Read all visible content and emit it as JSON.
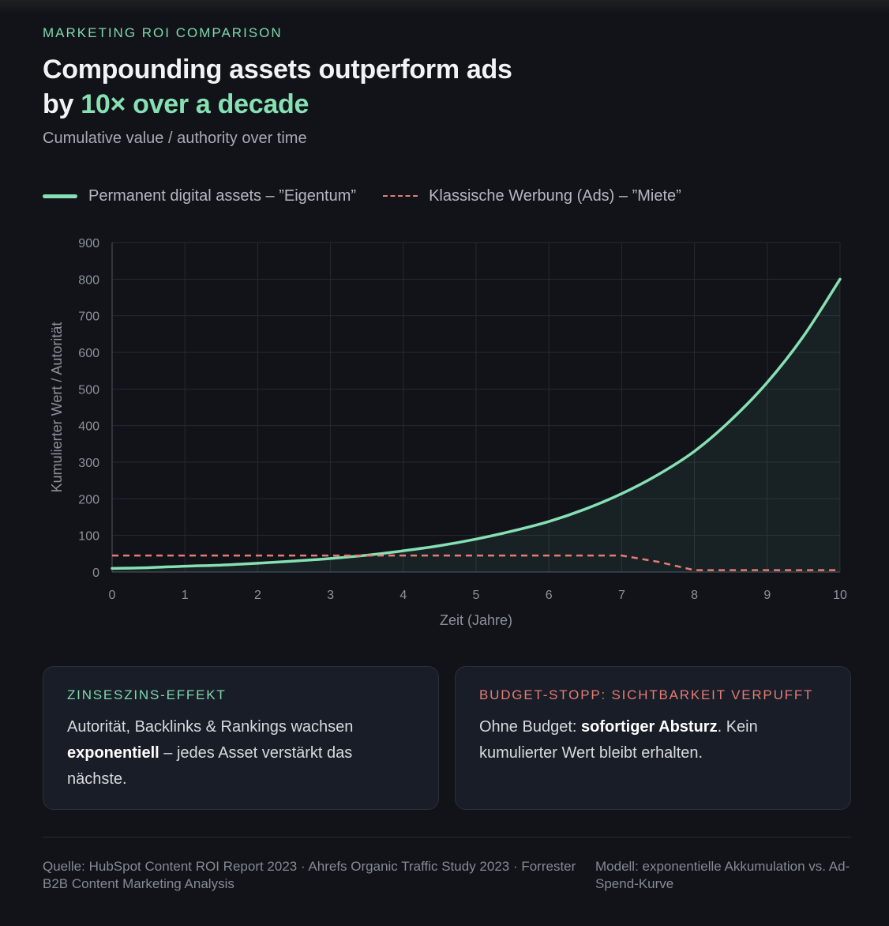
{
  "header": {
    "eyebrow": "MARKETING ROI COMPARISON",
    "title_line1": "Compounding assets outperform ads",
    "title_line2_prefix": "by ",
    "title_line2_accent": "10× over a decade",
    "subtitle": "Cumulative value / authority over time"
  },
  "legend": {
    "assets_label": "Permanent digital assets – ”Eigentum”",
    "ads_label": "Klassische Werbung (Ads) – ”Miete”"
  },
  "colors": {
    "assets": "#86e0b4",
    "ads": "#e57c74",
    "grid": "#262a31",
    "tick_text": "#8d929a"
  },
  "chart_data": {
    "type": "line",
    "xlabel": "Zeit (Jahre)",
    "ylabel": "Kumulierter Wert / Autorität",
    "xlim": [
      0,
      10
    ],
    "ylim": [
      0,
      900
    ],
    "x_ticks": [
      0,
      1,
      2,
      3,
      4,
      5,
      6,
      7,
      8,
      9,
      10
    ],
    "y_ticks": [
      0,
      100,
      200,
      300,
      400,
      500,
      600,
      700,
      800,
      900
    ],
    "grid": true,
    "legend_position": "top-left",
    "series": [
      {
        "name": "Permanent digital assets – ”Eigentum”",
        "style": "solid",
        "area_fill": true,
        "x": [
          0,
          0.5,
          1,
          1.5,
          2,
          2.5,
          3,
          3.5,
          4,
          4.5,
          5,
          5.5,
          6,
          6.5,
          7,
          7.5,
          8,
          8.5,
          9,
          9.5,
          10
        ],
        "y": [
          10,
          12,
          16,
          19,
          24,
          30,
          37,
          46,
          58,
          72,
          90,
          112,
          138,
          172,
          214,
          266,
          330,
          415,
          518,
          645,
          800
        ]
      },
      {
        "name": "Klassische Werbung (Ads) – ”Miete”",
        "style": "dashed",
        "x": [
          0,
          7,
          7.5,
          8,
          9,
          10
        ],
        "y": [
          45,
          45,
          28,
          5,
          5,
          5
        ]
      }
    ]
  },
  "cards": [
    {
      "label": "ZINSESZINS-EFFEKT",
      "text_before": "Autorität, Backlinks & Rankings wachsen ",
      "text_bold": "exponentiell",
      "text_after": " – jedes Asset verstärkt das nächste."
    },
    {
      "label": "BUDGET-STOPP: SICHTBARKEIT VERPUFFT",
      "text_before": "Ohne Budget: ",
      "text_bold": "sofortiger Absturz",
      "text_after": ". Kein kumulierter Wert bleibt erhalten."
    }
  ],
  "footer": {
    "source": "Quelle: HubSpot Content ROI Report 2023 · Ahrefs Organic Traffic Study 2023 · Forrester B2B Content Marketing Analysis",
    "model": "Modell: exponentielle Akkumulation vs. Ad-Spend-Kurve"
  }
}
